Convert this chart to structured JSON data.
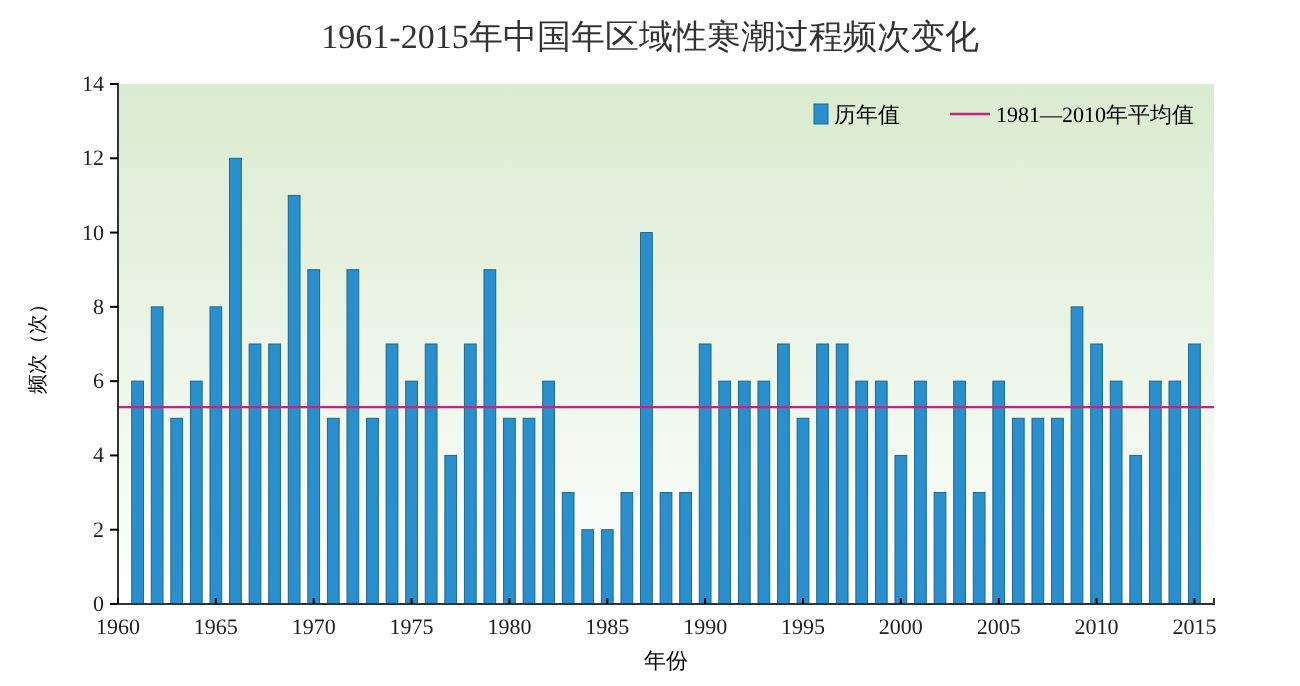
{
  "chart_data": {
    "type": "bar",
    "title": "1961-2015年中国年区域性寒潮过程频次变化",
    "xlabel": "年份",
    "ylabel": "频次（次）",
    "x": [
      1961,
      1962,
      1963,
      1964,
      1965,
      1966,
      1967,
      1968,
      1969,
      1970,
      1971,
      1972,
      1973,
      1974,
      1975,
      1976,
      1977,
      1978,
      1979,
      1980,
      1981,
      1982,
      1983,
      1984,
      1985,
      1986,
      1987,
      1988,
      1989,
      1990,
      1991,
      1992,
      1993,
      1994,
      1995,
      1996,
      1997,
      1998,
      1999,
      2000,
      2001,
      2002,
      2003,
      2004,
      2005,
      2006,
      2007,
      2008,
      2009,
      2010,
      2011,
      2012,
      2013,
      2014,
      2015
    ],
    "series": [
      {
        "name": "历年值",
        "color": "#2a8fcc",
        "values": [
          6,
          8,
          5,
          6,
          8,
          12,
          7,
          7,
          11,
          9,
          5,
          9,
          5,
          7,
          6,
          7,
          4,
          7,
          9,
          5,
          5,
          6,
          3,
          2,
          2,
          3,
          10,
          3,
          3,
          7,
          6,
          6,
          6,
          7,
          5,
          7,
          7,
          6,
          6,
          4,
          6,
          3,
          6,
          3,
          6,
          5,
          5,
          5,
          8,
          7,
          6,
          4,
          6,
          6,
          7
        ]
      }
    ],
    "ref_lines": [
      {
        "axis": "y",
        "value": 5.3,
        "label": "1981—2010年平均值",
        "color": "#c8227a"
      }
    ],
    "xlim": [
      1960,
      2016
    ],
    "xticks": [
      1960,
      1965,
      1970,
      1975,
      1980,
      1985,
      1990,
      1995,
      2000,
      2005,
      2010,
      2015
    ],
    "ylim": [
      0,
      14
    ],
    "yticks": [
      0,
      2,
      4,
      6,
      8,
      10,
      12,
      14
    ],
    "grid": false,
    "legend": "top right"
  }
}
